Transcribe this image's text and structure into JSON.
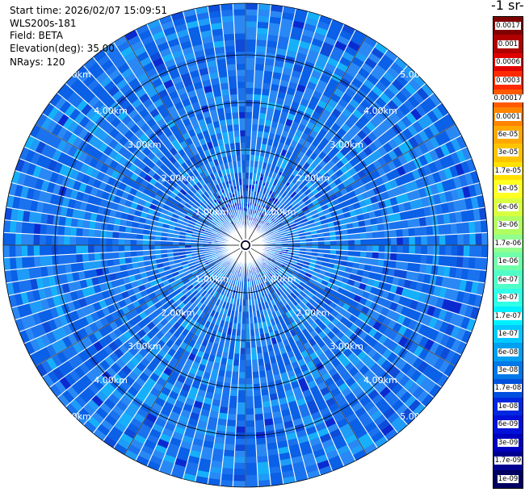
{
  "info": {
    "start_time": "Start time: 2026/02/07 15:09:51",
    "instrument": "WLS200s-181",
    "field": "Field: BETA",
    "elevation": "Elevation(deg): 35.00",
    "nrays": "NRays: 120"
  },
  "colorbar": {
    "unit_label": "-1 sr-",
    "labels": [
      "0.0017",
      "0.001",
      "0.0006",
      "0.0003",
      "0.00017",
      "0.0001",
      "6e-05",
      "3e-05",
      "1.7e-05",
      "1e-05",
      "6e-06",
      "3e-06",
      "1.7e-06",
      "1e-06",
      "6e-07",
      "3e-07",
      "1.7e-07",
      "1e-07",
      "6e-08",
      "3e-08",
      "1.7e-08",
      "1e-08",
      "6e-09",
      "3e-09",
      "1.7e-09",
      "1e-09"
    ],
    "colors": [
      "#800000",
      "#b00000",
      "#e00000",
      "#ff2a00",
      "#ff5a00",
      "#ff8400",
      "#ffa800",
      "#ffc400",
      "#ffe000",
      "#ffff20",
      "#d8ff40",
      "#b0ff60",
      "#90ff90",
      "#70ffa8",
      "#50ffc8",
      "#30ffe8",
      "#00f0ff",
      "#00c8ff",
      "#00a0f0",
      "#0078e8",
      "#0050e0",
      "#0028e0",
      "#0010d8",
      "#0000c0",
      "#000090",
      "#000060"
    ]
  },
  "range_rings": {
    "labels": [
      "1.00km",
      "2.00km",
      "3.00km",
      "4.00km",
      "5.00km"
    ]
  },
  "ppi": {
    "field_colors": [
      "#0a60e6",
      "#1a72ee",
      "#2a88f5",
      "#1e9cf8",
      "#16b0fa",
      "#0d4bd8",
      "#0a2ad0"
    ]
  }
}
